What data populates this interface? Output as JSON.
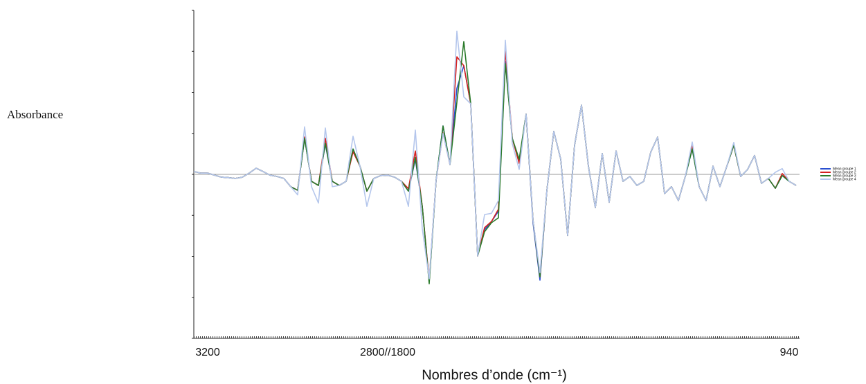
{
  "chart_data": {
    "type": "line",
    "y_label": "Absorbance",
    "x_label": "Nombres d’onde (cm⁻¹)",
    "categories": [
      null,
      null,
      "3200",
      null,
      null,
      null,
      null,
      null,
      null,
      null,
      null,
      null,
      null,
      null,
      null,
      null,
      null,
      null,
      null,
      null,
      null,
      null,
      null,
      null,
      null,
      null,
      null,
      null,
      "2800//1800",
      null,
      null,
      null,
      null,
      null,
      null,
      null,
      null,
      null,
      null,
      null,
      null,
      null,
      null,
      null,
      null,
      null,
      null,
      null,
      null,
      null,
      null,
      null,
      null,
      null,
      null,
      null,
      null,
      null,
      null,
      null,
      null,
      null,
      null,
      null,
      null,
      null,
      null,
      null,
      null,
      null,
      null,
      null,
      null,
      null,
      null,
      null,
      null,
      null,
      null,
      null,
      null,
      null,
      null,
      null,
      null,
      null,
      "940",
      null
    ],
    "series": [
      {
        "name": "Mean groupe 1",
        "color": "#2a4fd0",
        "values": [
          0.07,
          0.03,
          0.03,
          -0.02,
          -0.07,
          -0.08,
          -0.1,
          -0.07,
          0.03,
          0.15,
          0.07,
          -0.02,
          -0.05,
          -0.1,
          -0.3,
          -0.39,
          0.88,
          -0.17,
          -0.27,
          0.74,
          -0.17,
          -0.27,
          -0.17,
          0.62,
          0.2,
          -0.41,
          -0.1,
          -0.03,
          -0.02,
          -0.07,
          -0.17,
          -0.41,
          0.37,
          -0.78,
          -2.62,
          -0.14,
          1.18,
          0.24,
          2.1,
          2.65,
          1.72,
          -1.99,
          -1.35,
          -1.15,
          -0.9,
          2.75,
          0.88,
          0.3,
          1.47,
          -1.18,
          -2.58,
          -0.39,
          1.05,
          0.37,
          -1.49,
          0.71,
          1.69,
          0.2,
          -0.81,
          0.51,
          -0.68,
          0.57,
          -0.17,
          -0.05,
          -0.27,
          -0.17,
          0.54,
          0.91,
          -0.47,
          -0.3,
          -0.64,
          -0.05,
          0.62,
          -0.3,
          -0.64,
          0.2,
          -0.3,
          0.2,
          0.71,
          -0.05,
          0.12,
          0.46,
          -0.22,
          -0.1,
          -0.34,
          -0.03,
          -0.17,
          -0.27
        ]
      },
      {
        "name": "Mean groupe 2",
        "color": "#d42020",
        "values": [
          0.07,
          0.03,
          0.03,
          -0.02,
          -0.07,
          -0.08,
          -0.1,
          -0.07,
          0.03,
          0.15,
          0.07,
          -0.02,
          -0.05,
          -0.1,
          -0.3,
          -0.39,
          0.91,
          -0.17,
          -0.27,
          0.88,
          -0.17,
          -0.27,
          -0.17,
          0.55,
          0.2,
          -0.41,
          -0.1,
          -0.03,
          -0.02,
          -0.07,
          -0.17,
          -0.35,
          0.57,
          -0.78,
          -2.6,
          -0.14,
          1.01,
          0.24,
          2.87,
          2.65,
          1.72,
          -1.99,
          -1.3,
          -1.15,
          -0.85,
          3.04,
          0.88,
          0.27,
          1.47,
          -1.11,
          -2.5,
          -0.39,
          1.05,
          0.37,
          -1.49,
          0.71,
          1.69,
          0.2,
          -0.81,
          0.51,
          -0.68,
          0.57,
          -0.17,
          -0.05,
          -0.27,
          -0.17,
          0.54,
          0.91,
          -0.47,
          -0.3,
          -0.64,
          -0.05,
          0.69,
          -0.3,
          -0.64,
          0.2,
          -0.3,
          0.2,
          0.71,
          -0.05,
          0.12,
          0.46,
          -0.22,
          -0.1,
          -0.34,
          0.02,
          -0.17,
          -0.27
        ]
      },
      {
        "name": "Mean groupe 3",
        "color": "#2a7a2a",
        "values": [
          0.07,
          0.03,
          0.03,
          -0.02,
          -0.07,
          -0.08,
          -0.1,
          -0.07,
          0.03,
          0.15,
          0.07,
          -0.02,
          -0.05,
          -0.1,
          -0.3,
          -0.39,
          0.88,
          -0.17,
          -0.27,
          0.76,
          -0.17,
          -0.27,
          -0.17,
          0.62,
          0.2,
          -0.41,
          -0.1,
          -0.03,
          -0.02,
          -0.07,
          -0.17,
          -0.41,
          0.41,
          -0.78,
          -2.67,
          -0.14,
          1.18,
          0.24,
          1.76,
          3.24,
          1.72,
          -1.99,
          -1.4,
          -1.18,
          -1.06,
          2.7,
          0.88,
          0.37,
          1.47,
          -1.11,
          -2.5,
          -0.39,
          1.05,
          0.37,
          -1.49,
          0.71,
          1.69,
          0.2,
          -0.81,
          0.51,
          -0.68,
          0.57,
          -0.17,
          -0.05,
          -0.27,
          -0.17,
          0.54,
          0.91,
          -0.47,
          -0.3,
          -0.64,
          -0.05,
          0.62,
          -0.3,
          -0.64,
          0.2,
          -0.3,
          0.2,
          0.71,
          -0.05,
          0.12,
          0.46,
          -0.22,
          -0.1,
          -0.34,
          -0.03,
          -0.17,
          -0.27
        ]
      },
      {
        "name": "Mean groupe 4",
        "color": "#b4c6ec",
        "values": [
          0.07,
          0.03,
          0.03,
          -0.02,
          -0.07,
          -0.08,
          -0.1,
          -0.07,
          0.03,
          0.15,
          0.07,
          -0.02,
          -0.05,
          -0.1,
          -0.3,
          -0.5,
          1.16,
          -0.3,
          -0.7,
          1.13,
          -0.3,
          -0.27,
          -0.17,
          0.93,
          0.2,
          -0.78,
          -0.1,
          -0.03,
          -0.02,
          -0.07,
          -0.17,
          -0.78,
          1.08,
          -1.32,
          -2.55,
          -0.14,
          1.0,
          0.24,
          3.49,
          1.89,
          1.72,
          -1.99,
          -0.98,
          -0.95,
          -0.64,
          3.27,
          0.75,
          0.12,
          1.47,
          -1.11,
          -2.4,
          -0.39,
          1.05,
          0.37,
          -1.49,
          0.71,
          1.69,
          0.2,
          -0.81,
          0.51,
          -0.68,
          0.57,
          -0.17,
          -0.05,
          -0.27,
          -0.17,
          0.54,
          0.91,
          -0.47,
          -0.3,
          -0.64,
          -0.05,
          0.79,
          -0.3,
          -0.64,
          0.2,
          -0.3,
          0.2,
          0.78,
          -0.05,
          0.12,
          0.46,
          -0.22,
          -0.1,
          0.05,
          0.14,
          -0.17,
          -0.27
        ]
      }
    ],
    "ylim": [
      -4,
      4
    ],
    "yticks": [
      -4,
      -3,
      -2,
      -1,
      0,
      1,
      2,
      3,
      4
    ],
    "zero_line": true,
    "legend": "right"
  }
}
